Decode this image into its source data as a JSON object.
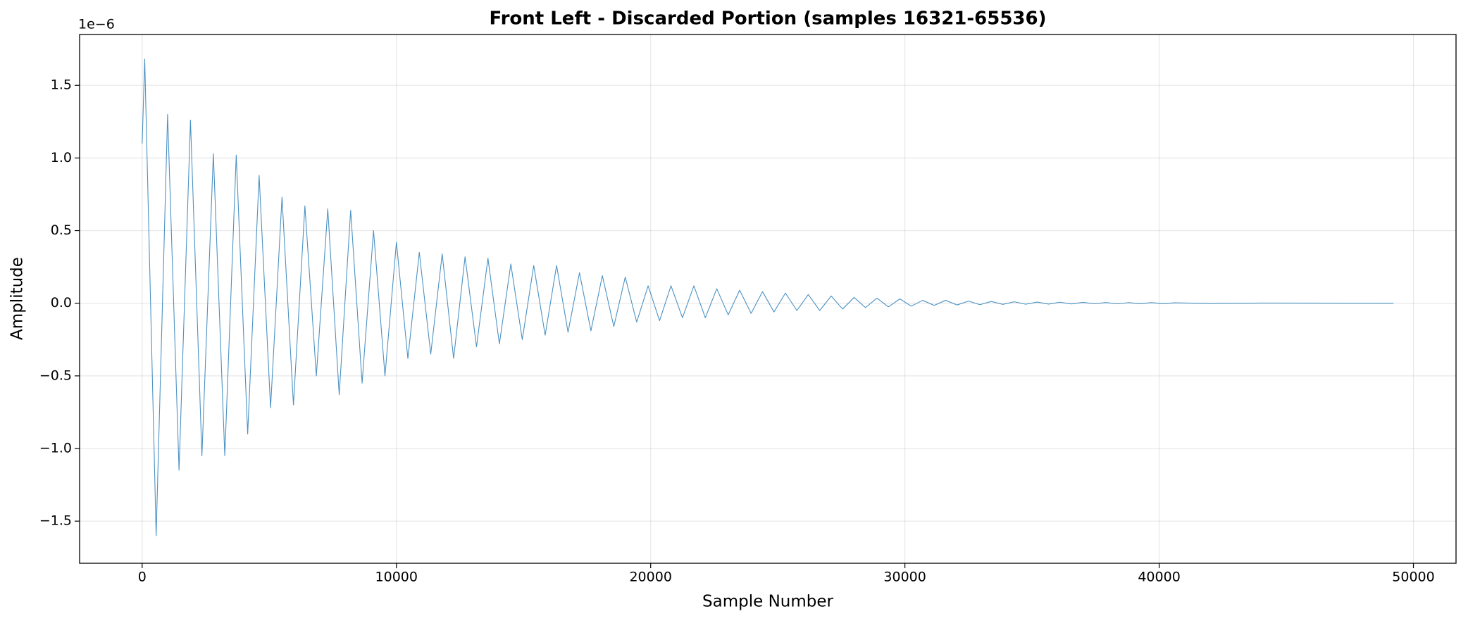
{
  "chart_data": {
    "type": "line",
    "title": "Front Left - Discarded Portion (samples 16321-65536)",
    "xlabel": "Sample Number",
    "ylabel": "Amplitude",
    "y_offset_label": "1e−6",
    "xlim": [
      -2461,
      51676
    ],
    "ylim": [
      -1.79,
      1.85
    ],
    "xticks": [
      0,
      10000,
      20000,
      30000,
      40000,
      50000
    ],
    "yticks": [
      {
        "value": -1.5,
        "label": "−1.5"
      },
      {
        "value": -1.0,
        "label": "−1.0"
      },
      {
        "value": -0.5,
        "label": "−0.5"
      },
      {
        "value": 0.0,
        "label": "0.0"
      },
      {
        "value": 0.5,
        "label": "0.5"
      },
      {
        "value": 1.0,
        "label": "1.0"
      },
      {
        "value": 1.5,
        "label": "1.5"
      }
    ],
    "grid": true,
    "x": [
      0,
      100,
      550,
      1000,
      1450,
      1900,
      2350,
      2800,
      3250,
      3700,
      4150,
      4600,
      5050,
      5500,
      5950,
      6400,
      6850,
      7300,
      7750,
      8200,
      8650,
      9100,
      9550,
      10000,
      10450,
      10900,
      11350,
      11800,
      12250,
      12700,
      13150,
      13600,
      14050,
      14500,
      14950,
      15400,
      15850,
      16300,
      16750,
      17200,
      17650,
      18100,
      18550,
      19000,
      19450,
      19900,
      20350,
      20800,
      21250,
      21700,
      22150,
      22600,
      23050,
      23500,
      23950,
      24400,
      24850,
      25300,
      25750,
      26200,
      26650,
      27100,
      27550,
      28000,
      28450,
      28900,
      29350,
      29800,
      30250,
      30700,
      31150,
      31600,
      32050,
      32500,
      32950,
      33400,
      33850,
      34300,
      34750,
      35200,
      35650,
      36100,
      36550,
      37000,
      37450,
      37900,
      38350,
      38800,
      39250,
      39700,
      40150,
      40600,
      42000,
      44000,
      49215
    ],
    "series": [
      {
        "color": "#1f77b4",
        "values": [
          1.1,
          1.68,
          -1.6,
          1.3,
          -1.15,
          1.26,
          -1.05,
          1.03,
          -1.05,
          1.02,
          -0.9,
          0.88,
          -0.72,
          0.73,
          -0.7,
          0.67,
          -0.5,
          0.65,
          -0.63,
          0.64,
          -0.55,
          0.5,
          -0.5,
          0.42,
          -0.38,
          0.35,
          -0.35,
          0.34,
          -0.38,
          0.32,
          -0.3,
          0.31,
          -0.28,
          0.27,
          -0.25,
          0.26,
          -0.22,
          0.26,
          -0.2,
          0.21,
          -0.19,
          0.19,
          -0.16,
          0.18,
          -0.13,
          0.12,
          -0.12,
          0.12,
          -0.1,
          0.12,
          -0.1,
          0.1,
          -0.08,
          0.09,
          -0.07,
          0.08,
          -0.06,
          0.07,
          -0.05,
          0.06,
          -0.05,
          0.05,
          -0.04,
          0.04,
          -0.03,
          0.035,
          -0.025,
          0.03,
          -0.02,
          0.02,
          -0.015,
          0.02,
          -0.012,
          0.015,
          -0.01,
          0.012,
          -0.008,
          0.01,
          -0.007,
          0.008,
          -0.006,
          0.007,
          -0.005,
          0.006,
          -0.004,
          0.005,
          -0.004,
          0.004,
          -0.003,
          0.004,
          -0.003,
          0.003,
          -0.002,
          0.001,
          0
        ]
      }
    ]
  }
}
